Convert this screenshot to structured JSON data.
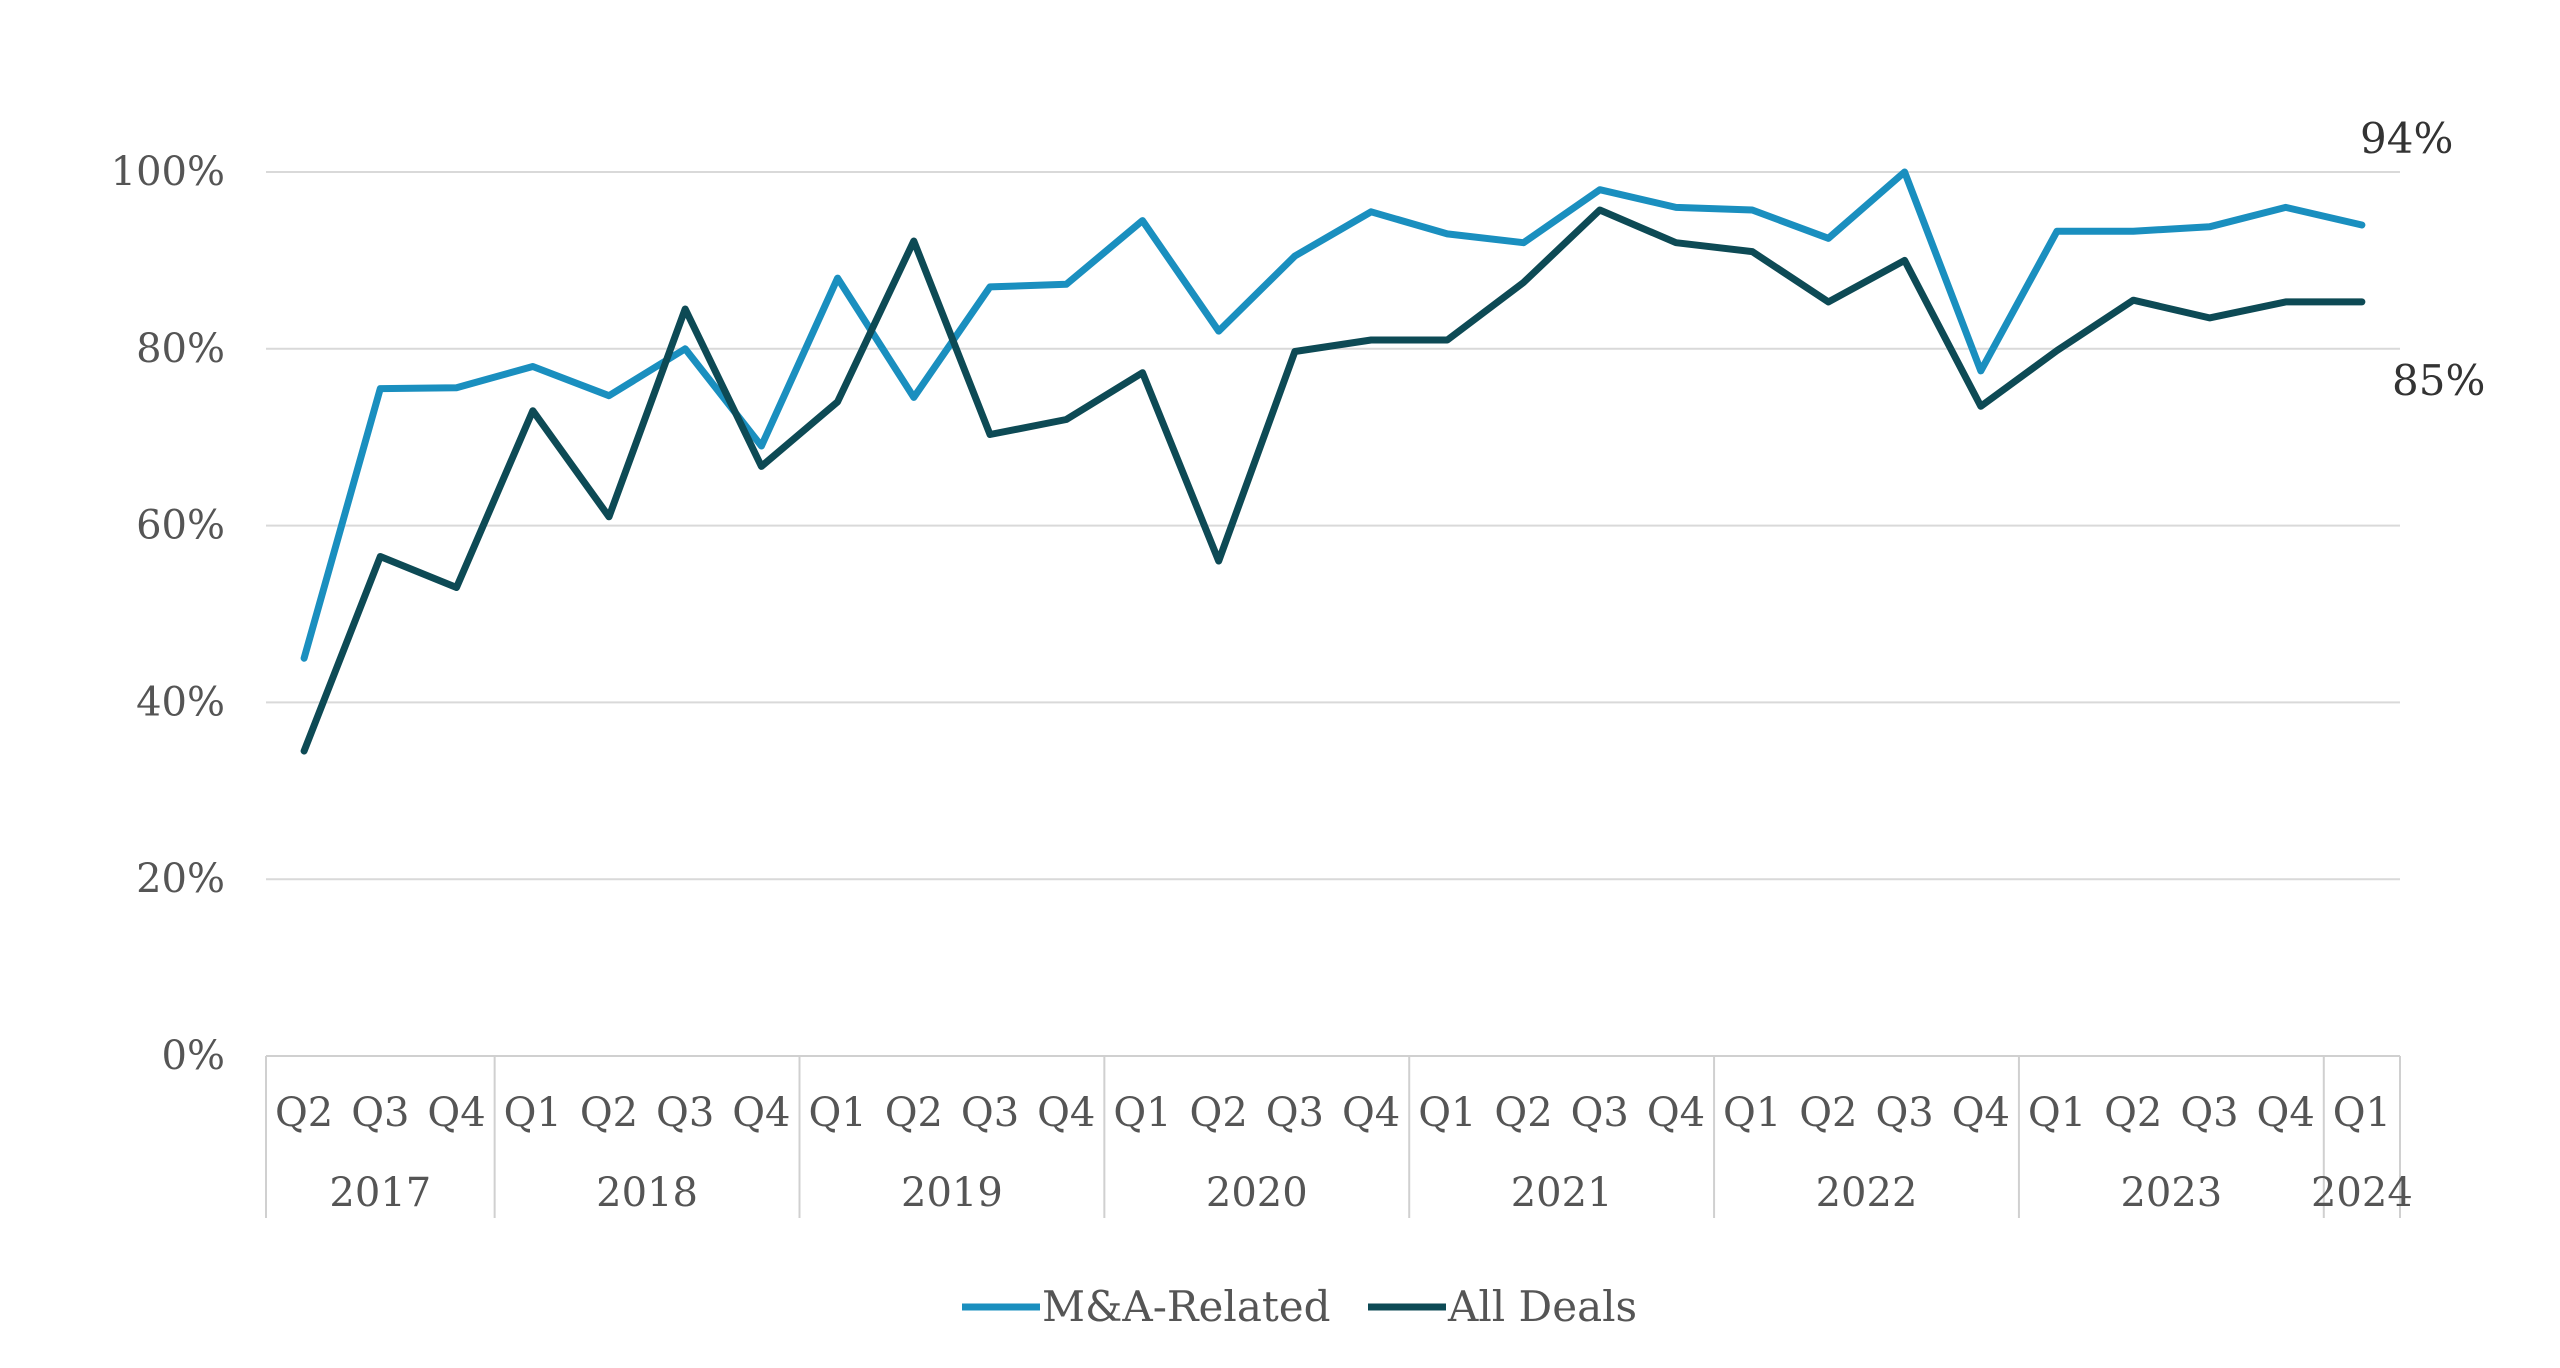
{
  "chart_data": {
    "type": "line",
    "categories": [
      "Q2",
      "Q3",
      "Q4",
      "Q1",
      "Q2",
      "Q3",
      "Q4",
      "Q1",
      "Q2",
      "Q3",
      "Q4",
      "Q1",
      "Q2",
      "Q3",
      "Q4",
      "Q1",
      "Q2",
      "Q3",
      "Q4",
      "Q1",
      "Q2",
      "Q3",
      "Q4",
      "Q1",
      "Q2",
      "Q3",
      "Q4",
      "Q1"
    ],
    "year_groups": [
      {
        "label": "2017",
        "count": 3
      },
      {
        "label": "2018",
        "count": 4
      },
      {
        "label": "2019",
        "count": 4
      },
      {
        "label": "2020",
        "count": 4
      },
      {
        "label": "2021",
        "count": 4
      },
      {
        "label": "2022",
        "count": 4
      },
      {
        "label": "2023",
        "count": 4
      },
      {
        "label": "2024",
        "count": 1
      }
    ],
    "series": [
      {
        "name": "M&A-Related",
        "color": "#1a8fbf",
        "values": [
          45,
          75.5,
          75.6,
          78,
          74.7,
          80,
          69,
          88,
          74.5,
          87,
          87.3,
          94.5,
          82,
          90.5,
          95.5,
          93,
          92,
          98,
          96,
          95.7,
          92.5,
          100,
          77.5,
          93.3,
          93.3,
          93.8,
          96,
          94
        ]
      },
      {
        "name": "All Deals",
        "color": "#0d4a55",
        "values": [
          34.5,
          56.5,
          53,
          73,
          61,
          84.5,
          66.7,
          74,
          92.2,
          70.3,
          72,
          77.3,
          56,
          79.7,
          81,
          81,
          87.5,
          95.7,
          92,
          91,
          85.3,
          90,
          73.5,
          79.8,
          85.5,
          83.5,
          85.3,
          85.3
        ]
      }
    ],
    "yticks": [
      "0%",
      "20%",
      "40%",
      "60%",
      "80%",
      "100%"
    ],
    "ylim": [
      0,
      100
    ],
    "end_labels": {
      "ma": "94%",
      "all": "85%"
    },
    "legend": "bottom-center",
    "grid": true
  }
}
